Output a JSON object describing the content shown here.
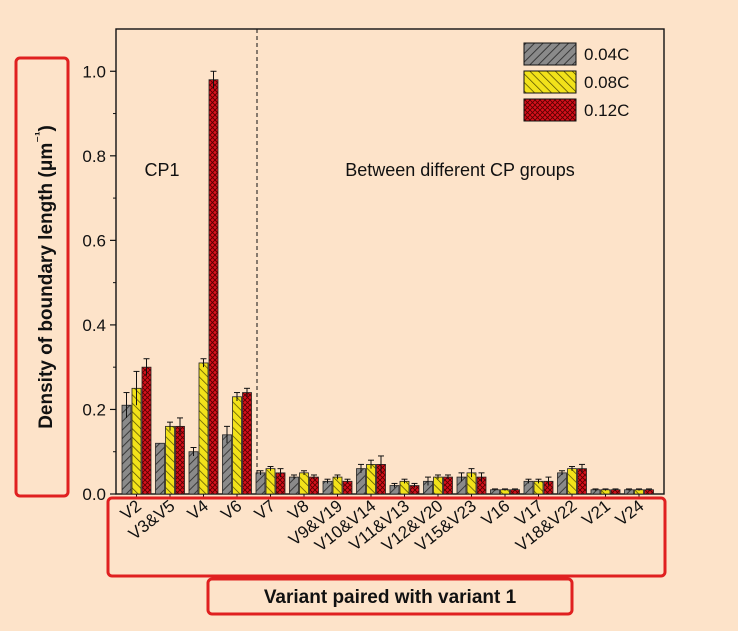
{
  "chart_data": {
    "type": "bar",
    "title": "",
    "xlabel": "Variant paired with variant 1",
    "ylabel": "Density of boundary length (μm⁻¹)",
    "ylim": [
      0,
      1.1
    ],
    "yticks": [
      0.0,
      0.2,
      0.4,
      0.6,
      0.8,
      1.0
    ],
    "ytick_labels": [
      "0.0",
      "0.2",
      "0.4",
      "0.6",
      "0.8",
      "1.0"
    ],
    "categories": [
      "V2",
      "V3&V5",
      "V4",
      "V6",
      "V7",
      "V8",
      "V9&V19",
      "V10&V14",
      "V11&V13",
      "V12&V20",
      "V15&V23",
      "V16",
      "V17",
      "V18&V22",
      "V21",
      "V24"
    ],
    "series": [
      {
        "name": "0.04C",
        "color": "#8a8a8a",
        "hatch": "hatch-a",
        "values": [
          0.21,
          0.12,
          0.1,
          0.14,
          0.05,
          0.04,
          0.03,
          0.06,
          0.02,
          0.03,
          0.04,
          0.01,
          0.03,
          0.05,
          0.01,
          0.01
        ],
        "errors": [
          0.03,
          0.0,
          0.01,
          0.02,
          0.005,
          0.005,
          0.005,
          0.01,
          0.005,
          0.01,
          0.01,
          0.002,
          0.005,
          0.005,
          0.002,
          0.002
        ]
      },
      {
        "name": "0.08C",
        "color": "#f2e21a",
        "hatch": "hatch-b",
        "values": [
          0.25,
          0.16,
          0.31,
          0.23,
          0.06,
          0.05,
          0.04,
          0.07,
          0.03,
          0.04,
          0.05,
          0.01,
          0.03,
          0.06,
          0.01,
          0.01
        ],
        "errors": [
          0.04,
          0.01,
          0.01,
          0.01,
          0.005,
          0.005,
          0.005,
          0.01,
          0.005,
          0.005,
          0.01,
          0.002,
          0.005,
          0.005,
          0.002,
          0.002
        ]
      },
      {
        "name": "0.12C",
        "color": "#d8101c",
        "hatch": "hatch-c",
        "values": [
          0.3,
          0.16,
          0.98,
          0.24,
          0.05,
          0.04,
          0.03,
          0.07,
          0.02,
          0.04,
          0.04,
          0.01,
          0.03,
          0.06,
          0.01,
          0.01
        ],
        "errors": [
          0.02,
          0.02,
          0.02,
          0.01,
          0.01,
          0.005,
          0.005,
          0.02,
          0.005,
          0.005,
          0.01,
          0.002,
          0.01,
          0.01,
          0.002,
          0.002
        ]
      }
    ],
    "annotations": [
      {
        "text": "CP1",
        "region": "left"
      },
      {
        "text": "Between different CP groups",
        "region": "right"
      }
    ],
    "legend_position": "top-right",
    "grid": false
  }
}
